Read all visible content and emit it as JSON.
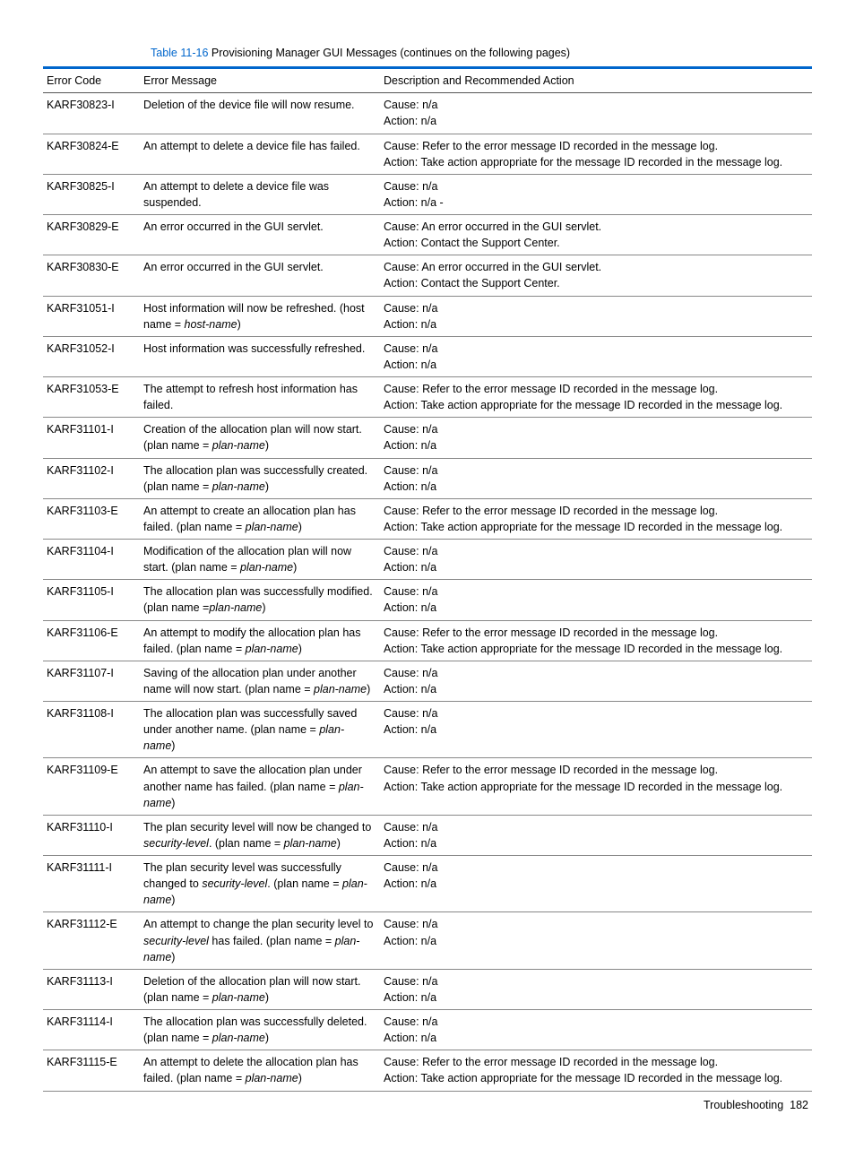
{
  "caption": {
    "label": "Table 11-16",
    "text": " Provisioning Manager GUI Messages (continues on the following pages)"
  },
  "columns": [
    "Error Code",
    "Error Message",
    "Description and Recommended Action"
  ],
  "rows": [
    {
      "code": "KARF30823-I",
      "msg": [
        {
          "t": "Deletion of the device file will now resume."
        }
      ],
      "desc": "Cause: n/a\nAction: n/a"
    },
    {
      "code": "KARF30824-E",
      "msg": [
        {
          "t": "An attempt to delete a device file has failed."
        }
      ],
      "desc": "Cause: Refer to the error message ID recorded in the message log.\nAction: Take action appropriate for the message ID recorded in the message log."
    },
    {
      "code": "KARF30825-I",
      "msg": [
        {
          "t": "An attempt to delete a device file was suspended."
        }
      ],
      "desc": "Cause: n/a\nAction: n/a -"
    },
    {
      "code": "KARF30829-E",
      "msg": [
        {
          "t": "An error occurred in the GUI servlet."
        }
      ],
      "desc": "Cause: An error occurred in the GUI servlet.\nAction: Contact the Support Center."
    },
    {
      "code": "KARF30830-E",
      "msg": [
        {
          "t": "An error occurred in the GUI servlet."
        }
      ],
      "desc": "Cause: An error occurred in the GUI servlet.\nAction: Contact the Support Center."
    },
    {
      "code": "KARF31051-I",
      "msg": [
        {
          "t": "Host information will now be refreshed. (host name = "
        },
        {
          "t": "host-name",
          "i": true
        },
        {
          "t": ")"
        }
      ],
      "desc": "Cause: n/a\nAction: n/a"
    },
    {
      "code": "KARF31052-I",
      "msg": [
        {
          "t": "Host information was successfully refreshed."
        }
      ],
      "desc": "Cause: n/a\nAction: n/a"
    },
    {
      "code": "KARF31053-E",
      "msg": [
        {
          "t": "The attempt to refresh host information has failed."
        }
      ],
      "desc": "Cause: Refer to the error message ID recorded in the message log.\nAction: Take action appropriate for the message ID recorded in the message log."
    },
    {
      "code": "KARF31101-I",
      "msg": [
        {
          "t": "Creation of the allocation plan will now start. (plan name = "
        },
        {
          "t": "plan-name",
          "i": true
        },
        {
          "t": ")"
        }
      ],
      "desc": "Cause: n/a\nAction: n/a"
    },
    {
      "code": "KARF31102-I",
      "msg": [
        {
          "t": "The allocation plan was successfully created. (plan name = "
        },
        {
          "t": "plan-name",
          "i": true
        },
        {
          "t": ")"
        }
      ],
      "desc": "Cause: n/a\nAction: n/a"
    },
    {
      "code": "KARF31103-E",
      "msg": [
        {
          "t": "An attempt to create an allocation plan has failed. (plan name = "
        },
        {
          "t": "plan-name",
          "i": true
        },
        {
          "t": ")"
        }
      ],
      "desc": "Cause: Refer to the error message ID recorded in the message log.\nAction: Take action appropriate for the message ID recorded in the message log."
    },
    {
      "code": "KARF31104-I",
      "msg": [
        {
          "t": "Modification of the allocation plan will now start. (plan name = "
        },
        {
          "t": "plan-name",
          "i": true
        },
        {
          "t": ")"
        }
      ],
      "desc": "Cause: n/a\nAction: n/a"
    },
    {
      "code": "KARF31105-I",
      "msg": [
        {
          "t": "The allocation plan was successfully modified. (plan name ="
        },
        {
          "t": "plan-name",
          "i": true
        },
        {
          "t": ")"
        }
      ],
      "desc": "Cause: n/a\nAction: n/a"
    },
    {
      "code": "KARF31106-E",
      "msg": [
        {
          "t": "An attempt to modify the allocation plan has failed. (plan name = "
        },
        {
          "t": "plan-name",
          "i": true
        },
        {
          "t": ")"
        }
      ],
      "desc": "Cause: Refer to the error message ID recorded in the message log.\nAction: Take action appropriate for the message ID recorded in the message log."
    },
    {
      "code": "KARF31107-I",
      "msg": [
        {
          "t": "Saving of the allocation plan under another name will now start. (plan name = "
        },
        {
          "t": "plan-name",
          "i": true
        },
        {
          "t": ")"
        }
      ],
      "desc": "Cause: n/a\nAction: n/a"
    },
    {
      "code": "KARF31108-I",
      "msg": [
        {
          "t": "The allocation plan was successfully saved under another name. (plan name = "
        },
        {
          "t": "plan-name",
          "i": true
        },
        {
          "t": ")"
        }
      ],
      "desc": "Cause: n/a\nAction: n/a"
    },
    {
      "code": "KARF31109-E",
      "msg": [
        {
          "t": "An attempt to save the allocation plan under another name has failed. (plan name = "
        },
        {
          "t": "plan-name",
          "i": true
        },
        {
          "t": ")"
        }
      ],
      "desc": "Cause: Refer to the error message ID recorded in the message log.\nAction: Take action appropriate for the message ID recorded in the message log."
    },
    {
      "code": "KARF31110-I",
      "msg": [
        {
          "t": "The plan security level will now be changed to "
        },
        {
          "t": "security-level",
          "i": true
        },
        {
          "t": ". (plan name = "
        },
        {
          "t": "plan-name",
          "i": true
        },
        {
          "t": ")"
        }
      ],
      "desc": "Cause: n/a\nAction: n/a"
    },
    {
      "code": "KARF31111-I",
      "msg": [
        {
          "t": "The plan security level was successfully changed to "
        },
        {
          "t": "security-level",
          "i": true
        },
        {
          "t": ". (plan name = "
        },
        {
          "t": "plan-name",
          "i": true
        },
        {
          "t": ")"
        }
      ],
      "desc": "Cause: n/a\nAction: n/a"
    },
    {
      "code": "KARF31112-E",
      "msg": [
        {
          "t": "An attempt to change the plan security level to "
        },
        {
          "t": "security-level",
          "i": true
        },
        {
          "t": " has failed. (plan name = "
        },
        {
          "t": "plan-name",
          "i": true
        },
        {
          "t": ")"
        }
      ],
      "desc": "Cause: n/a\nAction: n/a"
    },
    {
      "code": "KARF31113-I",
      "msg": [
        {
          "t": "Deletion of the allocation plan will now start. (plan name = "
        },
        {
          "t": "plan-name",
          "i": true
        },
        {
          "t": ")"
        }
      ],
      "desc": "Cause: n/a\nAction: n/a"
    },
    {
      "code": "KARF31114-I",
      "msg": [
        {
          "t": "The allocation plan was successfully deleted. (plan name = "
        },
        {
          "t": "plan-name",
          "i": true
        },
        {
          "t": ")"
        }
      ],
      "desc": "Cause: n/a\nAction: n/a"
    },
    {
      "code": "KARF31115-E",
      "msg": [
        {
          "t": "An attempt to delete the allocation plan has failed. (plan name = "
        },
        {
          "t": "plan-name",
          "i": true
        },
        {
          "t": ")"
        }
      ],
      "desc": "Cause: Refer to the error message ID recorded in the message log.\nAction: Take action appropriate for the message ID recorded in the message log."
    }
  ],
  "footer": {
    "section": "Troubleshooting",
    "page": "182"
  }
}
